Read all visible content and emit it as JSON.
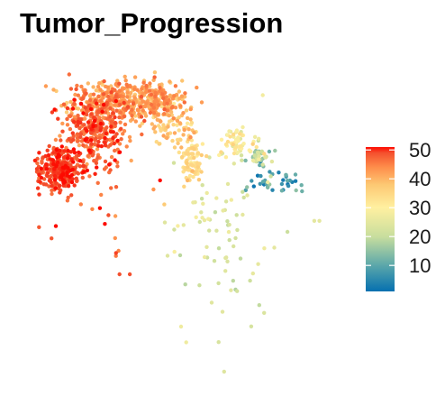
{
  "chart_data": {
    "type": "scatter",
    "title": "Tumor_Progression",
    "xlabel": "",
    "ylabel": "",
    "axes_visible": false,
    "grid": false,
    "legend": {
      "type": "colorbar",
      "placement": "right",
      "min": 1,
      "max": 51,
      "ticks": [
        10,
        20,
        30,
        40,
        50
      ],
      "colors": [
        "#0570B0",
        "#5BA7AA",
        "#C8DE9E",
        "#FFF0A0",
        "#FDC873",
        "#FE8E4B",
        "#F4502E",
        "#FD0A00"
      ],
      "stops": [
        0,
        10,
        20,
        30,
        38,
        44,
        49,
        51
      ]
    },
    "clusters": [
      {
        "name": "",
        "center": [
          -0.3,
          0.7
        ],
        "spread": [
          0.25,
          0.1
        ],
        "n": 380,
        "value": 42,
        "value_sd": 3
      },
      {
        "name": "",
        "center": [
          -0.55,
          0.42
        ],
        "spread": [
          0.16,
          0.18
        ],
        "n": 320,
        "value": 47,
        "value_sd": 2.5
      },
      {
        "name": "",
        "center": [
          -0.88,
          0.05
        ],
        "spread": [
          0.1,
          0.1
        ],
        "n": 320,
        "value": 49,
        "value_sd": 1.5
      },
      {
        "name": "",
        "center": [
          0.1,
          0.7
        ],
        "spread": [
          0.14,
          0.08
        ],
        "n": 130,
        "value": 41,
        "value_sd": 3
      },
      {
        "name": "",
        "center": [
          0.22,
          0.45
        ],
        "spread": [
          0.12,
          0.08
        ],
        "n": 70,
        "value": 37,
        "value_sd": 3
      },
      {
        "name": "",
        "center": [
          0.4,
          0.15
        ],
        "spread": [
          0.06,
          0.1
        ],
        "n": 90,
        "value": 34,
        "value_sd": 2
      },
      {
        "name": "",
        "center": [
          0.86,
          0.32
        ],
        "spread": [
          0.1,
          0.08
        ],
        "n": 60,
        "value": 29,
        "value_sd": 3
      },
      {
        "name": "",
        "center": [
          1.05,
          0.16
        ],
        "spread": [
          0.07,
          0.05
        ],
        "n": 45,
        "value": 18,
        "value_sd": 6
      },
      {
        "name": "",
        "center": [
          1.28,
          -0.06
        ],
        "spread": [
          0.13,
          0.05
        ],
        "n": 35,
        "value": 7,
        "value_sd": 4
      },
      {
        "name": "",
        "center": [
          0.7,
          -0.55
        ],
        "spread": [
          0.3,
          0.45
        ],
        "n": 80,
        "value": 24,
        "value_sd": 3
      },
      {
        "name": "",
        "center": [
          -0.45,
          -0.2
        ],
        "spread": [
          0.25,
          0.25
        ],
        "n": 25,
        "value": 47,
        "value_sd": 3
      }
    ],
    "outlier_points": [
      {
        "x": -0.3,
        "y": -0.95,
        "value": 49
      },
      {
        "x": -0.2,
        "y": -0.95,
        "value": 49
      },
      {
        "x": 1.6,
        "y": -0.44,
        "value": 25
      },
      {
        "x": 1.65,
        "y": -0.44,
        "value": 25
      },
      {
        "x": 0.72,
        "y": -1.88,
        "value": 24
      },
      {
        "x": 0.35,
        "y": -1.6,
        "value": 27
      },
      {
        "x": 0.3,
        "y": -1.45,
        "value": 27
      }
    ],
    "xlim": [
      -1.15,
      1.75
    ],
    "ylim": [
      -1.95,
      1.05
    ]
  }
}
